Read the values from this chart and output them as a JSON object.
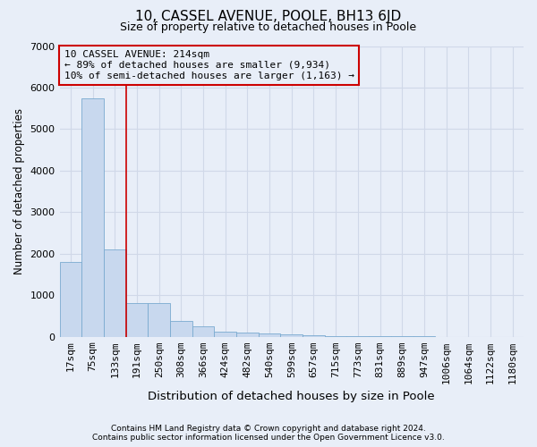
{
  "title_line1": "10, CASSEL AVENUE, POOLE, BH13 6JD",
  "title_line2": "Size of property relative to detached houses in Poole",
  "xlabel": "Distribution of detached houses by size in Poole",
  "ylabel": "Number of detached properties",
  "bar_labels": [
    "17sqm",
    "75sqm",
    "133sqm",
    "191sqm",
    "250sqm",
    "308sqm",
    "366sqm",
    "424sqm",
    "482sqm",
    "540sqm",
    "599sqm",
    "657sqm",
    "715sqm",
    "773sqm",
    "831sqm",
    "889sqm",
    "947sqm",
    "1006sqm",
    "1064sqm",
    "1122sqm",
    "1180sqm"
  ],
  "bar_values": [
    1800,
    5750,
    2100,
    800,
    800,
    380,
    250,
    120,
    100,
    80,
    60,
    30,
    15,
    10,
    5,
    3,
    2,
    1,
    1,
    1,
    1
  ],
  "bar_color": "#c8d8ee",
  "bar_edge_color": "#7aaad0",
  "vline_x": 2.5,
  "vline_color": "#cc0000",
  "ylim": [
    0,
    7000
  ],
  "yticks": [
    0,
    1000,
    2000,
    3000,
    4000,
    5000,
    6000,
    7000
  ],
  "annotation_text": "10 CASSEL AVENUE: 214sqm\n← 89% of detached houses are smaller (9,934)\n10% of semi-detached houses are larger (1,163) →",
  "annotation_box_edgecolor": "#cc0000",
  "footer_line1": "Contains HM Land Registry data © Crown copyright and database right 2024.",
  "footer_line2": "Contains public sector information licensed under the Open Government Licence v3.0.",
  "background_color": "#e8eef8",
  "grid_color": "#d0d8e8",
  "title1_fontsize": 11,
  "title2_fontsize": 9,
  "ylabel_fontsize": 8.5,
  "xlabel_fontsize": 9.5,
  "tick_fontsize": 8,
  "annot_fontsize": 8,
  "footer_fontsize": 6.5
}
